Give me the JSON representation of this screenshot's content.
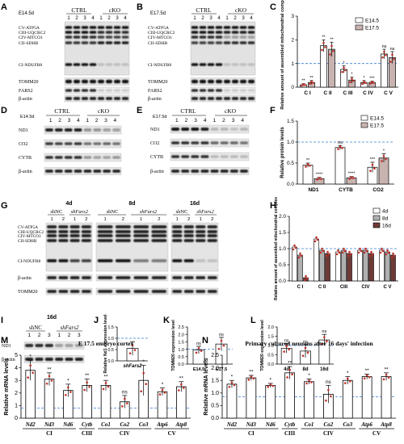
{
  "panels": {
    "A": {
      "letter": "A",
      "stage": "E14.5d",
      "group1": "CTRL",
      "group2": "cKO",
      "lanes": [
        "1",
        "2",
        "3",
        "4",
        "1",
        "2",
        "3",
        "4"
      ],
      "complex_labels": [
        "CV-ATP5A",
        "CIII-UQCRC2",
        "CIV-MTCO1",
        "CII-SDHB",
        "CI-NDUFB8"
      ],
      "blots": [
        "TOMM20",
        "FARS2",
        "β-actin"
      ]
    },
    "B": {
      "letter": "B",
      "stage": "E17.5d",
      "group1": "CTRL",
      "group2": "cKO",
      "lanes": [
        "1",
        "2",
        "3",
        "4",
        "1",
        "2",
        "3",
        "4"
      ],
      "complex_labels": [
        "CV-ATP5A",
        "CIII-UQCRC2",
        "CIV-MTCO1",
        "CII-SDHB",
        "CI-NDUFB8"
      ],
      "blots": [
        "TOMM20",
        "FARS2",
        "β-actin"
      ]
    },
    "D": {
      "letter": "D",
      "stage": "E14.5d",
      "group1": "CTRL",
      "group2": "cKO",
      "lanes": [
        "1",
        "2",
        "3",
        "4",
        "1",
        "2",
        "3",
        "4"
      ],
      "blots": [
        "ND1",
        "CO2",
        "CYTB",
        "β-actin"
      ]
    },
    "E": {
      "letter": "E",
      "stage": "E17.5d",
      "group1": "CTRL",
      "group2": "cKO",
      "lanes": [
        "1",
        "2",
        "3",
        "4",
        "1",
        "2",
        "3",
        "4"
      ],
      "blots": [
        "ND1",
        "CO2",
        "CYTB",
        "β-actin"
      ]
    },
    "G": {
      "letter": "G",
      "timepoints": [
        "4d",
        "8d",
        "16d"
      ],
      "group1": "shNC",
      "group2": "shFars2",
      "lanes": [
        "1",
        "2",
        "1",
        "2"
      ],
      "complex_labels": [
        "CV-ATP5A",
        "CIII-UQCRC2",
        "CIV-MTCO1",
        "CII-SDHB",
        "CI-NDUFB8"
      ],
      "blots": [
        "β-actin",
        "TOMM20"
      ]
    },
    "I": {
      "letter": "I",
      "timepoint": "16d",
      "group1": "shNC",
      "group2": "shFars2",
      "lanes": [
        "1",
        "2",
        "3",
        "1",
        "2",
        "3"
      ],
      "blots": [
        "ND1",
        "β-actin"
      ]
    },
    "J": {
      "letter": "J"
    },
    "K": {
      "letter": "K"
    },
    "L": {
      "letter": "L"
    },
    "C": {
      "letter": "C"
    },
    "F": {
      "letter": "F"
    },
    "H": {
      "letter": "H"
    },
    "M": {
      "letter": "M"
    },
    "N": {
      "letter": "N"
    }
  },
  "chart_data": [
    {
      "id": "C",
      "type": "bar",
      "ylabel": "Relative amount of assembled mitochondrial complex",
      "categories": [
        "C I",
        "C II",
        "C III",
        "C IV",
        "C V"
      ],
      "series": [
        {
          "name": "E14.5",
          "values": [
            0.1,
            1.75,
            0.75,
            0.2,
            1.4
          ],
          "errors": [
            0.05,
            0.25,
            0.15,
            0.08,
            0.2
          ],
          "color": "#ffffff"
        },
        {
          "name": "E17.5",
          "values": [
            0.2,
            1.6,
            0.3,
            0.2,
            1.25
          ],
          "errors": [
            0.08,
            0.3,
            0.12,
            0.06,
            0.25
          ],
          "color": "#c9b3b0"
        }
      ],
      "ylim": [
        0,
        3.0
      ],
      "yticks": [
        "0",
        "1",
        "2",
        "3"
      ],
      "reference_line": 1.0,
      "sig": [
        [
          "**",
          "**"
        ],
        [
          "**",
          "**"
        ],
        [
          "*",
          "*"
        ],
        [
          "*",
          "***"
        ],
        [
          "ns",
          "ns"
        ]
      ],
      "legend": "top-right"
    },
    {
      "id": "F",
      "type": "bar",
      "ylabel": "Relative protein levels",
      "categories": [
        "ND1",
        "CYTB",
        "CO2"
      ],
      "series": [
        {
          "name": "E14.5",
          "values": [
            0.45,
            0.87,
            0.4
          ],
          "errors": [
            0.05,
            0.05,
            0.12
          ],
          "color": "#ffffff"
        },
        {
          "name": "E17.5",
          "values": [
            0.13,
            0.15,
            0.62
          ],
          "errors": [
            0.03,
            0.03,
            0.1
          ],
          "color": "#c9b3b0"
        }
      ],
      "ylim": [
        0,
        1.5
      ],
      "yticks": [
        "0.0",
        "0.5",
        "1.0",
        "1.5"
      ],
      "reference_line": 1.0,
      "sig": [
        [
          "**",
          "****"
        ],
        [
          "ns",
          "****"
        ],
        [
          "***",
          "*"
        ]
      ],
      "legend": "top-right"
    },
    {
      "id": "H",
      "type": "bar",
      "ylabel": "Relative amount of assembled mitochondrial complex",
      "categories": [
        "C I",
        "C II",
        "CIII",
        "CIV",
        "C V"
      ],
      "series": [
        {
          "name": "4d",
          "values": [
            1.05,
            1.3,
            0.9,
            0.95,
            0.95
          ],
          "color": "#ffffff"
        },
        {
          "name": "8d",
          "values": [
            0.8,
            0.95,
            0.95,
            0.95,
            0.9
          ],
          "color": "#b0b0b0"
        },
        {
          "name": "16d",
          "values": [
            0.1,
            0.85,
            0.85,
            0.85,
            0.8
          ],
          "color": "#6e3a36"
        }
      ],
      "ylim": [
        0,
        2.0
      ],
      "yticks": [
        "0.0",
        "0.5",
        "1.0",
        "1.5",
        "2.0"
      ],
      "reference_line": 1.0,
      "legend": "top-right"
    },
    {
      "id": "J",
      "type": "bar",
      "ylabel": "Relative Nd1 expression level",
      "categories": [
        "shFars2"
      ],
      "values": [
        0.55
      ],
      "errors": [
        0.3
      ],
      "ylim": [
        0,
        1.5
      ],
      "yticks": [
        "0.0",
        "0.5",
        "1.0",
        "1.5"
      ],
      "reference_line": 1.0
    },
    {
      "id": "K",
      "type": "bar",
      "ylabel": "TOMM20 expression level",
      "categories": [
        "E14.5",
        "E17.5"
      ],
      "values": [
        0.95,
        1.35
      ],
      "errors": [
        0.25,
        0.45
      ],
      "ylim": [
        0,
        2.5
      ],
      "yticks": [
        "0.0",
        "0.5",
        "1.0",
        "1.5",
        "2.0",
        "2.5"
      ],
      "reference_line": 1.0,
      "sig": [
        "ns",
        "ns"
      ]
    },
    {
      "id": "L",
      "type": "bar",
      "ylabel": "TOMM20 expression level",
      "categories": [
        "4d",
        "8d",
        "16d"
      ],
      "values": [
        0.85,
        0.7,
        1.3
      ],
      "errors": [
        0.25,
        0.35,
        0.3
      ],
      "ylim": [
        0,
        2.0
      ],
      "yticks": [
        "0.0",
        "0.5",
        "1.0",
        "1.5",
        "2.0"
      ],
      "reference_line": 1.0,
      "sig": [
        "ns",
        "ns",
        "ns"
      ]
    },
    {
      "id": "M",
      "type": "bar",
      "title": "E 17.5 embryo cortex",
      "ylabel": "Relative mRNA levels",
      "categories": [
        "Nd2",
        "Nd3",
        "Nd6",
        "Cytb",
        "Co1",
        "Co2",
        "Co3",
        "Atp6",
        "Atp8"
      ],
      "groups": [
        {
          "label": "CI",
          "span": [
            0,
            2
          ]
        },
        {
          "label": "CIII",
          "span": [
            3,
            3
          ]
        },
        {
          "label": "CIV",
          "span": [
            4,
            6
          ]
        },
        {
          "label": "CV",
          "span": [
            7,
            8
          ]
        }
      ],
      "values": [
        3.8,
        3.1,
        2.2,
        2.6,
        2.6,
        1.3,
        3.0,
        2.1,
        2.5
      ],
      "errors": [
        0.8,
        0.5,
        0.5,
        0.5,
        0.4,
        0.5,
        1.2,
        0.3,
        0.4
      ],
      "ylim": [
        0,
        5
      ],
      "yticks": [
        "0",
        "1",
        "2",
        "3",
        "4",
        "5"
      ],
      "reference_line": 0.8,
      "sig": [
        "*",
        "**",
        "*",
        "**",
        "**",
        "ns",
        "*",
        "*",
        "**"
      ]
    },
    {
      "id": "N",
      "type": "bar",
      "title": "Primary cultured neurons after 16 days' infection",
      "ylabel": "Relative mRNA levels",
      "categories": [
        "Nd2",
        "Nd3",
        "Nd6",
        "Cytb",
        "Co1",
        "Co2",
        "Co3",
        "Atp6",
        "Atp8"
      ],
      "groups": [
        {
          "label": "CI",
          "span": [
            0,
            2
          ]
        },
        {
          "label": "CIII",
          "span": [
            3,
            3
          ]
        },
        {
          "label": "CIV",
          "span": [
            4,
            6
          ]
        },
        {
          "label": "CV",
          "span": [
            7,
            8
          ]
        }
      ],
      "values": [
        1.35,
        1.6,
        1.3,
        1.8,
        1.45,
        0.95,
        1.5,
        1.65,
        1.65
      ],
      "errors": [
        0.15,
        0.1,
        0.08,
        0.25,
        0.1,
        0.35,
        0.15,
        0.1,
        0.15
      ],
      "ylim": [
        0,
        2.5
      ],
      "yticks": [
        "0.0",
        "0.5",
        "1.0",
        "1.5",
        "2.0",
        "2.5"
      ],
      "reference_line": 0.85,
      "sig": [
        "*",
        "**",
        "*",
        "**",
        "*",
        "ns",
        "*",
        "**",
        "**"
      ]
    }
  ],
  "colors": {
    "bar_white": "#ffffff",
    "bar_pink": "#c9b3b0",
    "dot_red": "#c0302a",
    "ref_line": "#3a7bd5"
  }
}
